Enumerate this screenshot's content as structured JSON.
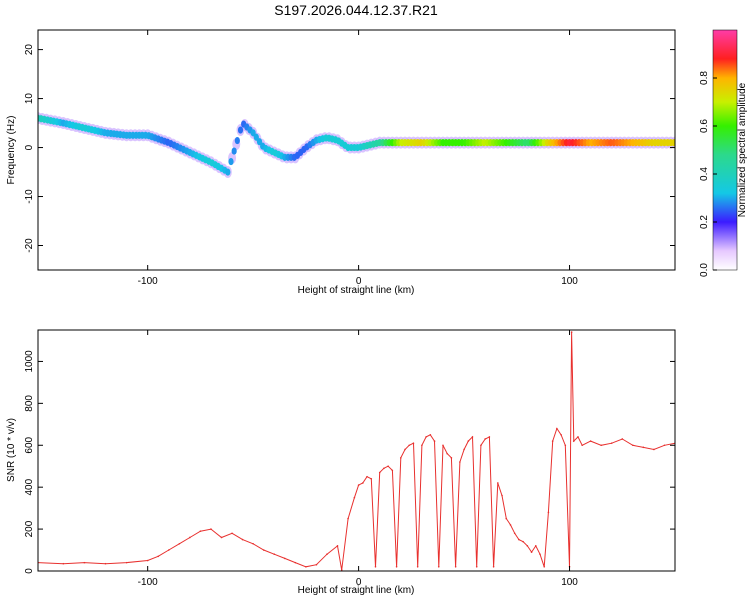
{
  "title": "S197.2026.044.12.37.R21",
  "colors": {
    "snr_line": "#e8302e",
    "axis": "#000000"
  },
  "colorbar": {
    "label": "Normalized spectral amplitude",
    "range": [
      0,
      1
    ],
    "ticks": [
      {
        "value": 0.0,
        "label": "0.0"
      },
      {
        "value": 0.2,
        "label": "0.2"
      },
      {
        "value": 0.4,
        "label": "0.4"
      },
      {
        "value": 0.6,
        "label": "0.6"
      },
      {
        "value": 0.8,
        "label": "0.8"
      }
    ]
  },
  "chart_data": [
    {
      "type": "heatmap",
      "title": "S197.2026.044.12.37.R21",
      "xlabel": "Height of straight line (km)",
      "ylabel": "Frequency (Hz)",
      "xlim": [
        -152,
        150
      ],
      "ylim": [
        -25,
        24
      ],
      "xticks": [
        {
          "value": -100,
          "label": "-100"
        },
        {
          "value": 0,
          "label": "0"
        },
        {
          "value": 100,
          "label": "100"
        }
      ],
      "yticks": [
        {
          "value": 20,
          "label": "20"
        },
        {
          "value": 10,
          "label": "10"
        },
        {
          "value": 0,
          "label": "0"
        },
        {
          "value": -10,
          "label": "-10"
        },
        {
          "value": -20,
          "label": "-20"
        }
      ],
      "ridge": {
        "x": [
          -152,
          -140,
          -130,
          -120,
          -110,
          -100,
          -90,
          -80,
          -70,
          -62,
          -55,
          -50,
          -45,
          -40,
          -35,
          -30,
          -25,
          -20,
          -15,
          -10,
          -5,
          0,
          10,
          20,
          30,
          40,
          50,
          60,
          70,
          80,
          90,
          100,
          110,
          120,
          130,
          140,
          150
        ],
        "freq": [
          6,
          5,
          4,
          3,
          2.5,
          2.5,
          1,
          -1,
          -3,
          -5,
          5,
          3,
          0,
          -1,
          -2,
          -2,
          0,
          1.5,
          2,
          1.5,
          0,
          0,
          1,
          1,
          1,
          1,
          1,
          1,
          1,
          1,
          1,
          1,
          1,
          1,
          1,
          1,
          1
        ],
        "amplitude": [
          0.4,
          0.3,
          0.35,
          0.3,
          0.3,
          0.3,
          0.25,
          0.3,
          0.35,
          0.3,
          0.25,
          0.3,
          0.3,
          0.35,
          0.3,
          0.25,
          0.25,
          0.3,
          0.35,
          0.35,
          0.35,
          0.35,
          0.45,
          0.7,
          0.75,
          0.6,
          0.6,
          0.7,
          0.6,
          0.5,
          0.75,
          0.9,
          0.8,
          0.85,
          0.8,
          0.75,
          0.75
        ]
      }
    },
    {
      "type": "line",
      "xlabel": "Height of straight line (km)",
      "ylabel": "SNR (10 * v/v)",
      "xlim": [
        -152,
        150
      ],
      "ylim": [
        0,
        1150
      ],
      "xticks": [
        {
          "value": -100,
          "label": "-100"
        },
        {
          "value": 0,
          "label": "0"
        },
        {
          "value": 100,
          "label": "100"
        }
      ],
      "yticks": [
        {
          "value": 0,
          "label": "0"
        },
        {
          "value": 200,
          "label": "200"
        },
        {
          "value": 400,
          "label": "400"
        },
        {
          "value": 600,
          "label": "600"
        },
        {
          "value": 800,
          "label": "800"
        },
        {
          "value": 1000,
          "label": "1000"
        }
      ],
      "series": [
        {
          "name": "SNR",
          "x": [
            -152,
            -140,
            -130,
            -120,
            -110,
            -100,
            -95,
            -90,
            -85,
            -80,
            -75,
            -70,
            -65,
            -60,
            -55,
            -50,
            -45,
            -40,
            -35,
            -30,
            -25,
            -20,
            -15,
            -10,
            -8,
            -5,
            -2,
            0,
            2,
            4,
            6,
            8,
            10,
            12,
            14,
            16,
            18,
            20,
            22,
            24,
            26,
            28,
            30,
            32,
            34,
            36,
            38,
            40,
            42,
            44,
            46,
            48,
            50,
            52,
            54,
            56,
            58,
            60,
            62,
            64,
            66,
            68,
            70,
            72,
            74,
            76,
            78,
            80,
            82,
            84,
            86,
            88,
            90,
            92,
            94,
            96,
            98,
            100,
            101,
            102,
            104,
            106,
            110,
            115,
            120,
            125,
            130,
            135,
            140,
            145,
            150
          ],
          "values": [
            40,
            35,
            40,
            35,
            40,
            50,
            70,
            100,
            130,
            160,
            190,
            200,
            160,
            180,
            150,
            130,
            100,
            80,
            60,
            40,
            20,
            30,
            80,
            120,
            5,
            250,
            350,
            410,
            420,
            450,
            440,
            20,
            470,
            490,
            500,
            480,
            20,
            540,
            580,
            600,
            610,
            20,
            600,
            640,
            650,
            620,
            20,
            600,
            560,
            540,
            20,
            520,
            580,
            620,
            640,
            20,
            600,
            630,
            640,
            20,
            420,
            360,
            250,
            220,
            180,
            150,
            140,
            120,
            90,
            120,
            80,
            20,
            280,
            620,
            680,
            650,
            600,
            20,
            1140,
            620,
            640,
            600,
            620,
            600,
            610,
            630,
            600,
            590,
            580,
            600,
            610
          ]
        }
      ]
    }
  ]
}
